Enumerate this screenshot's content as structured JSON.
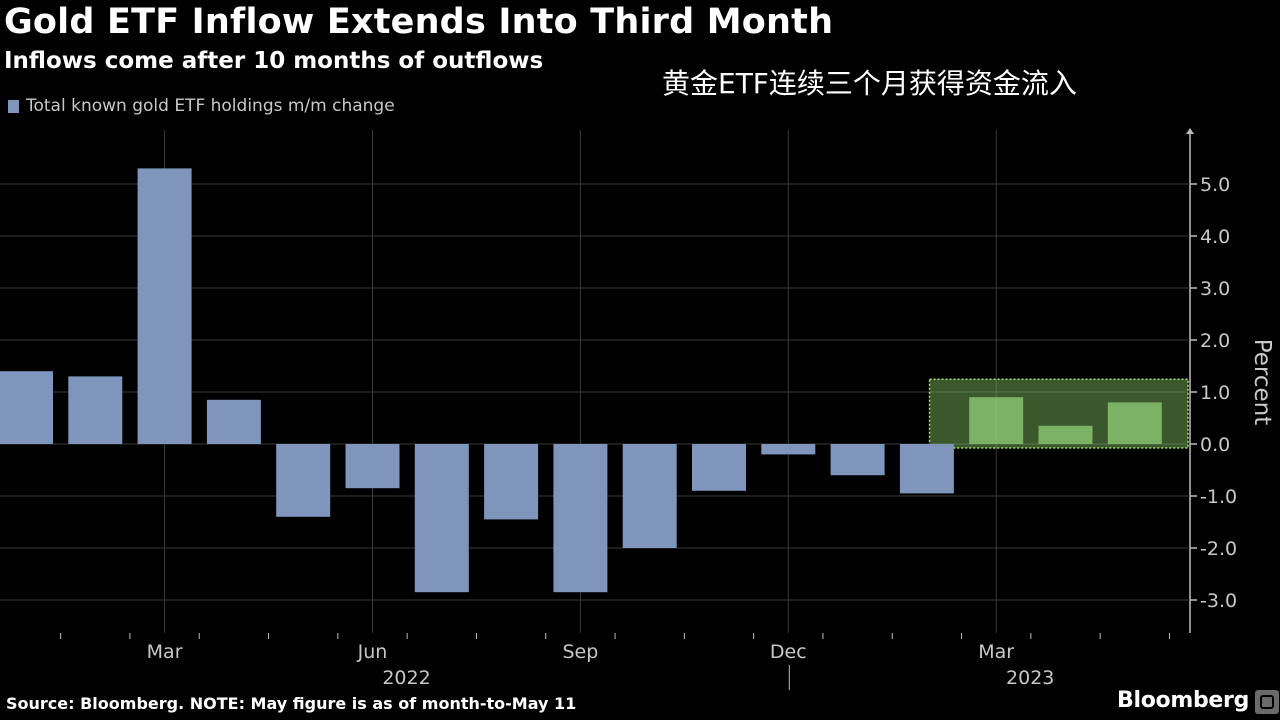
{
  "header": {
    "title": "Gold ETF Inflow Extends Into Third Month",
    "subtitle": "Inflows come after 10 months of outflows",
    "caption_cn": "黄金ETF连续三个月获得资金流入"
  },
  "footer": {
    "source": "Source: Bloomberg. NOTE: May figure is as of month-to-May 11",
    "brand": "Bloomberg"
  },
  "colors": {
    "background": "#000000",
    "bar": "#7f95bb",
    "highlight_fill": "#82c062",
    "highlight_border": "#a6e27a",
    "grid": "#3a3a3a",
    "text": "#ffffff",
    "tick_text": "#c8c8c8"
  },
  "chart_data": {
    "type": "bar",
    "categories": [
      "2022-01",
      "2022-02",
      "2022-03",
      "2022-04",
      "2022-05",
      "2022-06",
      "2022-07",
      "2022-08",
      "2022-09",
      "2022-10",
      "2022-11",
      "2022-12",
      "2023-01",
      "2023-02",
      "2023-03",
      "2023-04",
      "2023-05"
    ],
    "series": [
      {
        "name": "Total known gold ETF holdings m/m change",
        "values": [
          1.4,
          1.3,
          5.3,
          0.85,
          -1.4,
          -0.85,
          -2.85,
          -1.45,
          -2.85,
          -2.0,
          -0.9,
          -0.2,
          -0.6,
          -0.95,
          0.9,
          0.35,
          0.8
        ]
      }
    ],
    "highlighted_categories": [
      "2023-03",
      "2023-04",
      "2023-05"
    ],
    "xlabel": "",
    "ylabel": "Percent",
    "ylim": [
      -3.6,
      6.0
    ],
    "yticks": [
      -3.0,
      -2.0,
      -1.0,
      0.0,
      1.0,
      2.0,
      3.0,
      4.0,
      5.0
    ],
    "ytick_labels": [
      "-3.0",
      "-2.0",
      "-1.0",
      "0.0",
      "1.0",
      "2.0",
      "3.0",
      "4.0",
      "5.0"
    ],
    "xticks": [
      {
        "category": "2022-03",
        "label": "Mar"
      },
      {
        "category": "2022-06",
        "label": "Jun"
      },
      {
        "category": "2022-09",
        "label": "Sep"
      },
      {
        "category": "2022-12",
        "label": "Dec"
      },
      {
        "category": "2023-03",
        "label": "Mar"
      }
    ],
    "year_labels": [
      {
        "category": "2022-06",
        "label": "2022"
      },
      {
        "category": "2023-03",
        "label": "2023"
      }
    ],
    "grid": true,
    "legend": "top-left",
    "y_axis_side": "right"
  }
}
